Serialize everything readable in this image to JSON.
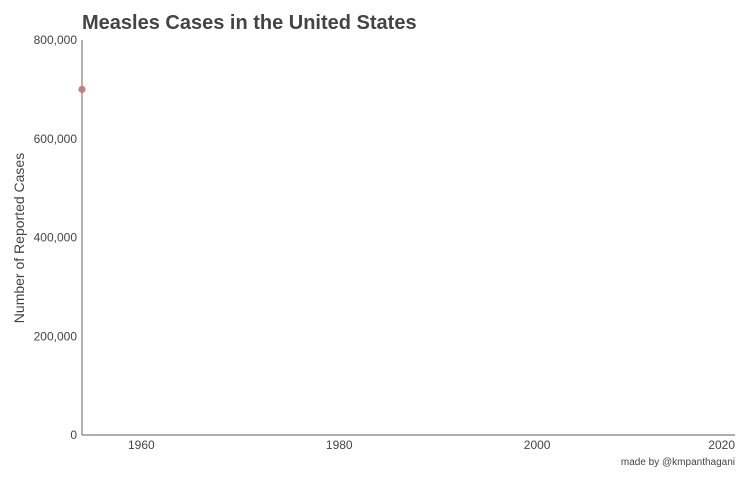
{
  "chart_data": {
    "type": "scatter",
    "title": "Measles Cases in the United States",
    "xlabel": "",
    "ylabel": "Number of Reported Cases",
    "xlim": [
      1954,
      2020
    ],
    "ylim": [
      0,
      800000
    ],
    "x_ticks": [
      1960,
      1980,
      2000,
      2020
    ],
    "x_tick_labels": [
      "1960",
      "1980",
      "2000",
      "2020"
    ],
    "y_ticks": [
      0,
      200000,
      400000,
      600000,
      800000
    ],
    "y_tick_labels": [
      "0",
      "200,000",
      "400,000",
      "600,000",
      "800,000"
    ],
    "grid": false,
    "legend": "none",
    "series": [
      {
        "color": "#c47a78",
        "points": [
          {
            "x": 1954,
            "y": 700000
          }
        ]
      }
    ]
  },
  "footer": {
    "credit": "made by @kmpanthagani"
  },
  "colors": {
    "axis": "#8a7b70",
    "text": "#444444",
    "point": "#c47a78"
  }
}
